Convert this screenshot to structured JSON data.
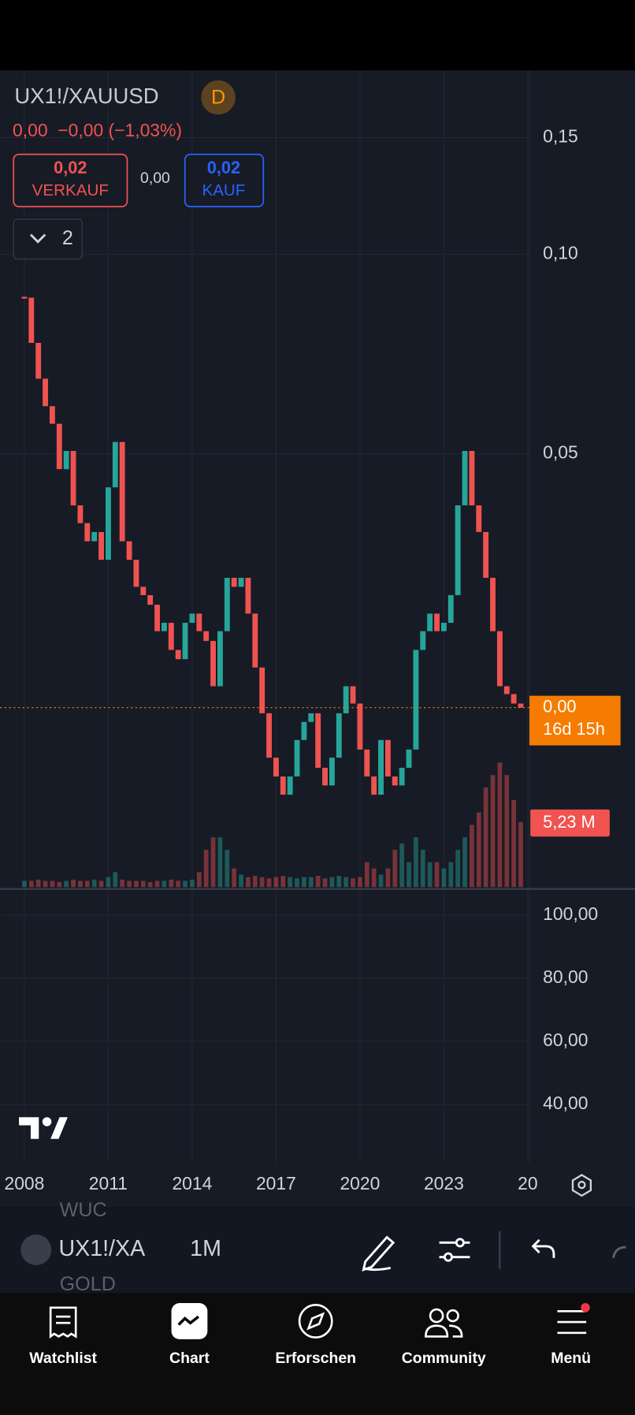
{
  "header": {
    "symbol": "UX1!/XAUUSD",
    "badge": "D",
    "change": "0,00  −0,00 (−1,03%)",
    "sell": {
      "price": "0,02",
      "label": "VERKAUF"
    },
    "spread": "0,00",
    "buy": {
      "price": "0,02",
      "label": "KAUF"
    },
    "indicators": "2",
    "price_tag": "0,00",
    "countdown": "16d 15h"
  },
  "chart_data": {
    "type": "candlestick",
    "log_scale": true,
    "grid": true,
    "up_color": "#26a69a",
    "down_color": "#ef5350",
    "x": [
      2008,
      2008.25,
      2008.5,
      2008.75,
      2009,
      2009.25,
      2009.5,
      2009.75,
      2010,
      2010.25,
      2010.5,
      2010.75,
      2011,
      2011.25,
      2011.5,
      2011.75,
      2012,
      2012.25,
      2012.5,
      2012.75,
      2013,
      2013.25,
      2013.5,
      2013.75,
      2014,
      2014.25,
      2014.5,
      2014.75,
      2015,
      2015.25,
      2015.5,
      2015.75,
      2016,
      2016.25,
      2016.5,
      2016.75,
      2017,
      2017.25,
      2017.5,
      2017.75,
      2018,
      2018.25,
      2018.5,
      2018.75,
      2019,
      2019.25,
      2019.5,
      2019.75,
      2020,
      2020.25,
      2020.5,
      2020.75,
      2021,
      2021.25,
      2021.5,
      2021.75,
      2022,
      2022.25,
      2022.5,
      2022.75,
      2023,
      2023.25,
      2023.5,
      2023.75,
      2024,
      2024.25,
      2024.5,
      2024.75,
      2025,
      2025.25,
      2025.5,
      2025.75
    ],
    "values": [
      0.086,
      0.0735,
      0.0649,
      0.059,
      0.0555,
      0.0474,
      0.0505,
      0.0418,
      0.0393,
      0.0369,
      0.0381,
      0.0346,
      0.0445,
      0.0521,
      0.0369,
      0.0346,
      0.0315,
      0.0306,
      0.0296,
      0.027,
      0.0278,
      0.0253,
      0.0245,
      0.0278,
      0.0287,
      0.027,
      0.0261,
      0.0223,
      0.027,
      0.0325,
      0.0315,
      0.0325,
      0.0287,
      0.0238,
      0.0203,
      0.0174,
      0.0163,
      0.0153,
      0.0163,
      0.0185,
      0.0197,
      0.0203,
      0.0168,
      0.0158,
      0.0174,
      0.0203,
      0.0223,
      0.021,
      0.0179,
      0.0163,
      0.0153,
      0.0185,
      0.0163,
      0.0158,
      0.0168,
      0.0179,
      0.0253,
      0.027,
      0.0287,
      0.027,
      0.0278,
      0.0306,
      0.0418,
      0.0505,
      0.0418,
      0.0381,
      0.0325,
      0.027,
      0.0223,
      0.0217,
      0.021,
      0.0207
    ],
    "ylim": [
      0.0111,
      0.1894
    ],
    "yticks": [
      {
        "value": 0.05,
        "label": "0,05"
      },
      {
        "value": 0.1,
        "label": "0,10"
      },
      {
        "value": 0.15,
        "label": "0,15"
      }
    ],
    "xlim": [
      2007.13,
      2026.06
    ],
    "xticks": [
      2008,
      2011,
      2014,
      2017,
      2020,
      2023,
      {
        "value": 2026,
        "label": "20"
      }
    ],
    "volume": {
      "values": [
        0.5,
        0.5,
        0.6,
        0.5,
        0.5,
        0.4,
        0.5,
        0.6,
        0.5,
        0.5,
        0.6,
        0.5,
        0.8,
        1.2,
        0.6,
        0.5,
        0.5,
        0.5,
        0.4,
        0.5,
        0.5,
        0.6,
        0.5,
        0.5,
        0.6,
        1.2,
        3,
        4,
        4,
        3,
        1.5,
        1,
        0.8,
        0.9,
        0.8,
        0.7,
        0.8,
        0.9,
        0.8,
        0.7,
        0.8,
        0.8,
        0.9,
        0.7,
        0.8,
        0.9,
        0.8,
        0.7,
        0.8,
        2,
        1.5,
        1,
        1.5,
        3,
        3.5,
        2,
        4,
        3,
        2,
        2,
        1.5,
        2,
        3,
        4,
        5,
        6,
        8,
        9,
        10,
        9,
        7,
        5.23
      ],
      "ylim": [
        0,
        65.6
      ],
      "last_label": "5,23 M"
    },
    "pane2": {
      "ylim": [
        21.7,
        108.3
      ],
      "yticks": [
        {
          "value": 40,
          "label": "40,00"
        },
        {
          "value": 60,
          "label": "60,00"
        },
        {
          "value": 80,
          "label": "80,00"
        },
        {
          "value": 100,
          "label": "100,00"
        }
      ]
    }
  },
  "toolbar": {
    "symbol_above": "WUC",
    "symbol": "UX1!/XA",
    "symbol_below": "GOLD",
    "interval": "1M"
  },
  "nav": [
    "Watchlist",
    "Chart",
    "Erforschen",
    "Community",
    "Menü"
  ]
}
